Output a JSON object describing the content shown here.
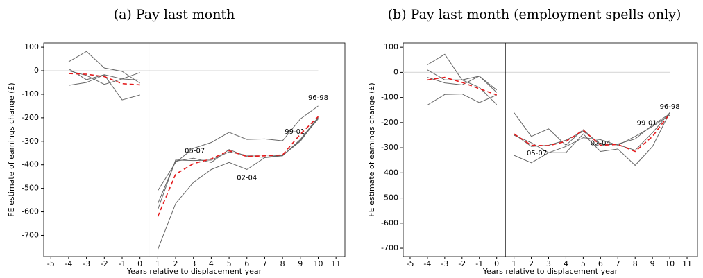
{
  "chart_data": [
    {
      "type": "line",
      "title": "(a) Pay last month",
      "xlabel": "Years relative to displacement year",
      "ylabel": "FE estimate of earnings change (£)",
      "x": [
        -4,
        -3,
        -2,
        -1,
        0,
        null,
        1,
        2,
        3,
        4,
        5,
        6,
        7,
        8,
        9,
        10
      ],
      "xlim": [
        -5.4,
        11.5
      ],
      "ylim": [
        -790,
        118
      ],
      "xticks": [
        -5,
        -4,
        -3,
        -2,
        -1,
        0,
        1,
        2,
        3,
        4,
        5,
        6,
        7,
        8,
        9,
        10,
        11
      ],
      "yticks": [
        100,
        0,
        -100,
        -200,
        -300,
        -400,
        -500,
        -600,
        -700
      ],
      "hline": 0,
      "vline": 0.5,
      "series": [
        {
          "name": "96-98",
          "color": "#666666",
          "values": [
            38,
            82,
            12,
            -3,
            -53,
            null,
            -510,
            -390,
            -330,
            -305,
            -262,
            -292,
            -290,
            -298,
            -205,
            -150
          ]
        },
        {
          "name": "99-01",
          "color": "#666666",
          "values": [
            -62,
            -50,
            -18,
            -124,
            -103,
            null,
            -565,
            -385,
            -372,
            -390,
            -335,
            -365,
            -368,
            -360,
            -300,
            -200
          ]
        },
        {
          "name": "02-04",
          "color": "#666666",
          "values": [
            0,
            -20,
            -58,
            -35,
            -40,
            null,
            -760,
            -565,
            -475,
            -420,
            -390,
            -420,
            -370,
            -362,
            -295,
            -205
          ]
        },
        {
          "name": "05-07",
          "color": "#666666",
          "values": [
            8,
            -38,
            -17,
            -35,
            -8,
            null,
            -590,
            -380,
            -382,
            -380,
            -345,
            -360,
            -358,
            -362,
            -292,
            -198
          ]
        },
        {
          "color": "#e41a1c",
          "dashed": true,
          "values": [
            -12,
            -15,
            -25,
            -55,
            -60,
            null,
            -620,
            -440,
            -395,
            -375,
            -340,
            -365,
            -362,
            -358,
            -270,
            -195
          ]
        }
      ]
    },
    {
      "type": "line",
      "title": "(b) Pay last month (employment spells only)",
      "xlabel": "Years relative to displacement year",
      "ylabel": "FE estimate of earnings change (£)",
      "x": [
        -4,
        -3,
        -2,
        -1,
        0,
        null,
        1,
        2,
        3,
        4,
        5,
        6,
        7,
        8,
        9,
        10
      ],
      "xlim": [
        -5.4,
        11.6
      ],
      "ylim": [
        -733,
        117
      ],
      "xticks": [
        -5,
        -4,
        -3,
        -2,
        -1,
        0,
        1,
        2,
        3,
        4,
        5,
        6,
        7,
        8,
        9,
        10,
        11
      ],
      "yticks": [
        100,
        0,
        -100,
        -200,
        -300,
        -400,
        -500,
        -600,
        -700
      ],
      "hline": 0,
      "vline": 0.5,
      "series": [
        {
          "name": "96-98",
          "color": "#666666",
          "values": [
            30,
            72,
            -30,
            -15,
            -80,
            null,
            -160,
            -255,
            -225,
            -290,
            -228,
            -290,
            -285,
            -265,
            -210,
            -165
          ]
        },
        {
          "name": "99-01",
          "color": "#666666",
          "values": [
            -130,
            -88,
            -86,
            -120,
            -90,
            null,
            -245,
            -295,
            -290,
            -270,
            -235,
            -285,
            -288,
            -310,
            -240,
            -160
          ]
        },
        {
          "name": "02-04",
          "color": "#666666",
          "values": [
            10,
            -30,
            -30,
            -60,
            -128,
            null,
            -250,
            -280,
            -320,
            -320,
            -245,
            -315,
            -305,
            -370,
            -295,
            -160
          ]
        },
        {
          "name": "05-07",
          "color": "#666666",
          "values": [
            -20,
            -42,
            -50,
            -15,
            -70,
            null,
            -330,
            -360,
            -320,
            -295,
            -260,
            -268,
            -290,
            -255,
            -215,
            -170
          ]
        },
        {
          "color": "#e41a1c",
          "dashed": true,
          "values": [
            -30,
            -20,
            -40,
            -65,
            -90,
            null,
            -245,
            -290,
            -292,
            -275,
            -230,
            -290,
            -287,
            -315,
            -255,
            -165
          ]
        }
      ]
    }
  ]
}
